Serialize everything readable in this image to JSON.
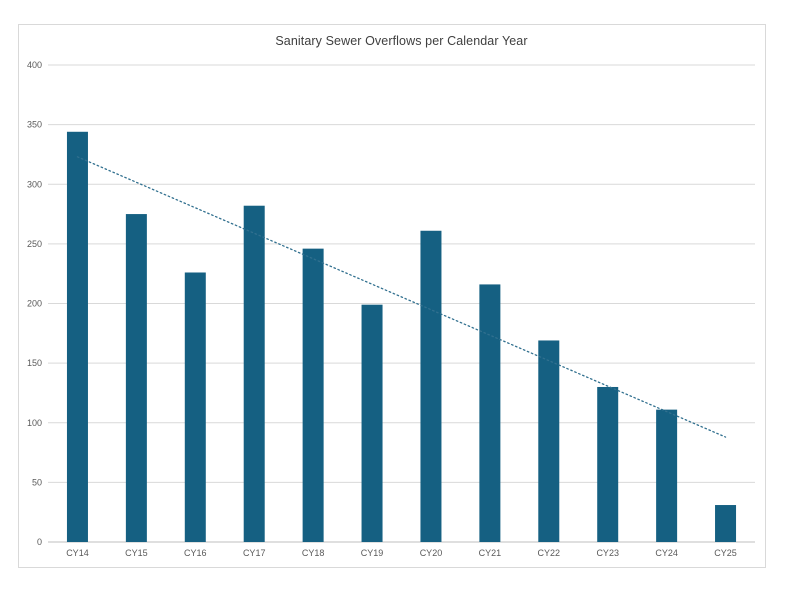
{
  "page": {
    "background": "#ffffff"
  },
  "chart": {
    "title": "Sanitary Sewer Overflows per Calendar Year",
    "frame": {
      "border_color": "#d9d9d9",
      "background": "#ffffff"
    },
    "colors": {
      "bar": "#156082",
      "trendline": "#31708f",
      "gridline": "#d9d9d9",
      "axis_line": "#bfbfbf",
      "tick_label": "#595959",
      "title_text": "#404040"
    }
  },
  "chart_data": {
    "type": "bar",
    "title": "Sanitary Sewer Overflows per Calendar Year",
    "categories": [
      "CY14",
      "CY15",
      "CY16",
      "CY17",
      "CY18",
      "CY19",
      "CY20",
      "CY21",
      "CY22",
      "CY23",
      "CY24",
      "CY25"
    ],
    "values": [
      344,
      275,
      226,
      282,
      246,
      199,
      261,
      216,
      169,
      130,
      111,
      31
    ],
    "xlabel": "",
    "ylabel": "",
    "ylim": [
      0,
      400
    ],
    "y_ticks": [
      0,
      50,
      100,
      150,
      200,
      250,
      300,
      350,
      400
    ],
    "grid": "horizontal",
    "legend": "none",
    "bar_color": "#156082",
    "trendline": {
      "type": "linear",
      "style": "dotted",
      "color": "#31708f",
      "start_value": 323,
      "end_value": 88
    }
  }
}
